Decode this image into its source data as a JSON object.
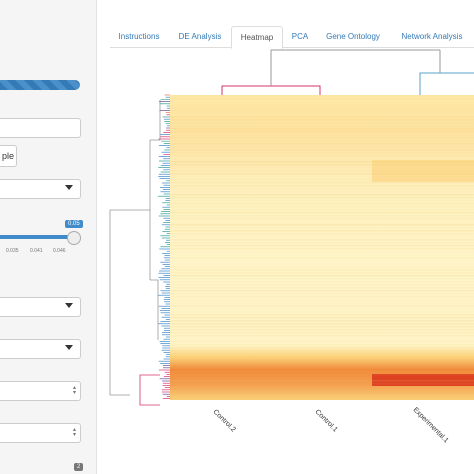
{
  "tabs": [
    {
      "label": "Instructions"
    },
    {
      "label": "DE Analysis"
    },
    {
      "label": "Heatmap"
    },
    {
      "label": "PCA"
    },
    {
      "label": "Gene Ontology"
    },
    {
      "label": "Network Analysis"
    }
  ],
  "active_tab": "Heatmap",
  "sidebar": {
    "button_label": "ple",
    "slider": {
      "value": "0.05",
      "ticks": [
        "0.035",
        "0.041",
        "0.046"
      ]
    },
    "badge": "2"
  },
  "heatmap": {
    "columns": [
      "Control.2",
      "Control.1",
      "Experimental.1"
    ],
    "colors": {
      "low": "#fdf5c8",
      "mid": "#fbd27a",
      "high": "#d9321c"
    }
  }
}
